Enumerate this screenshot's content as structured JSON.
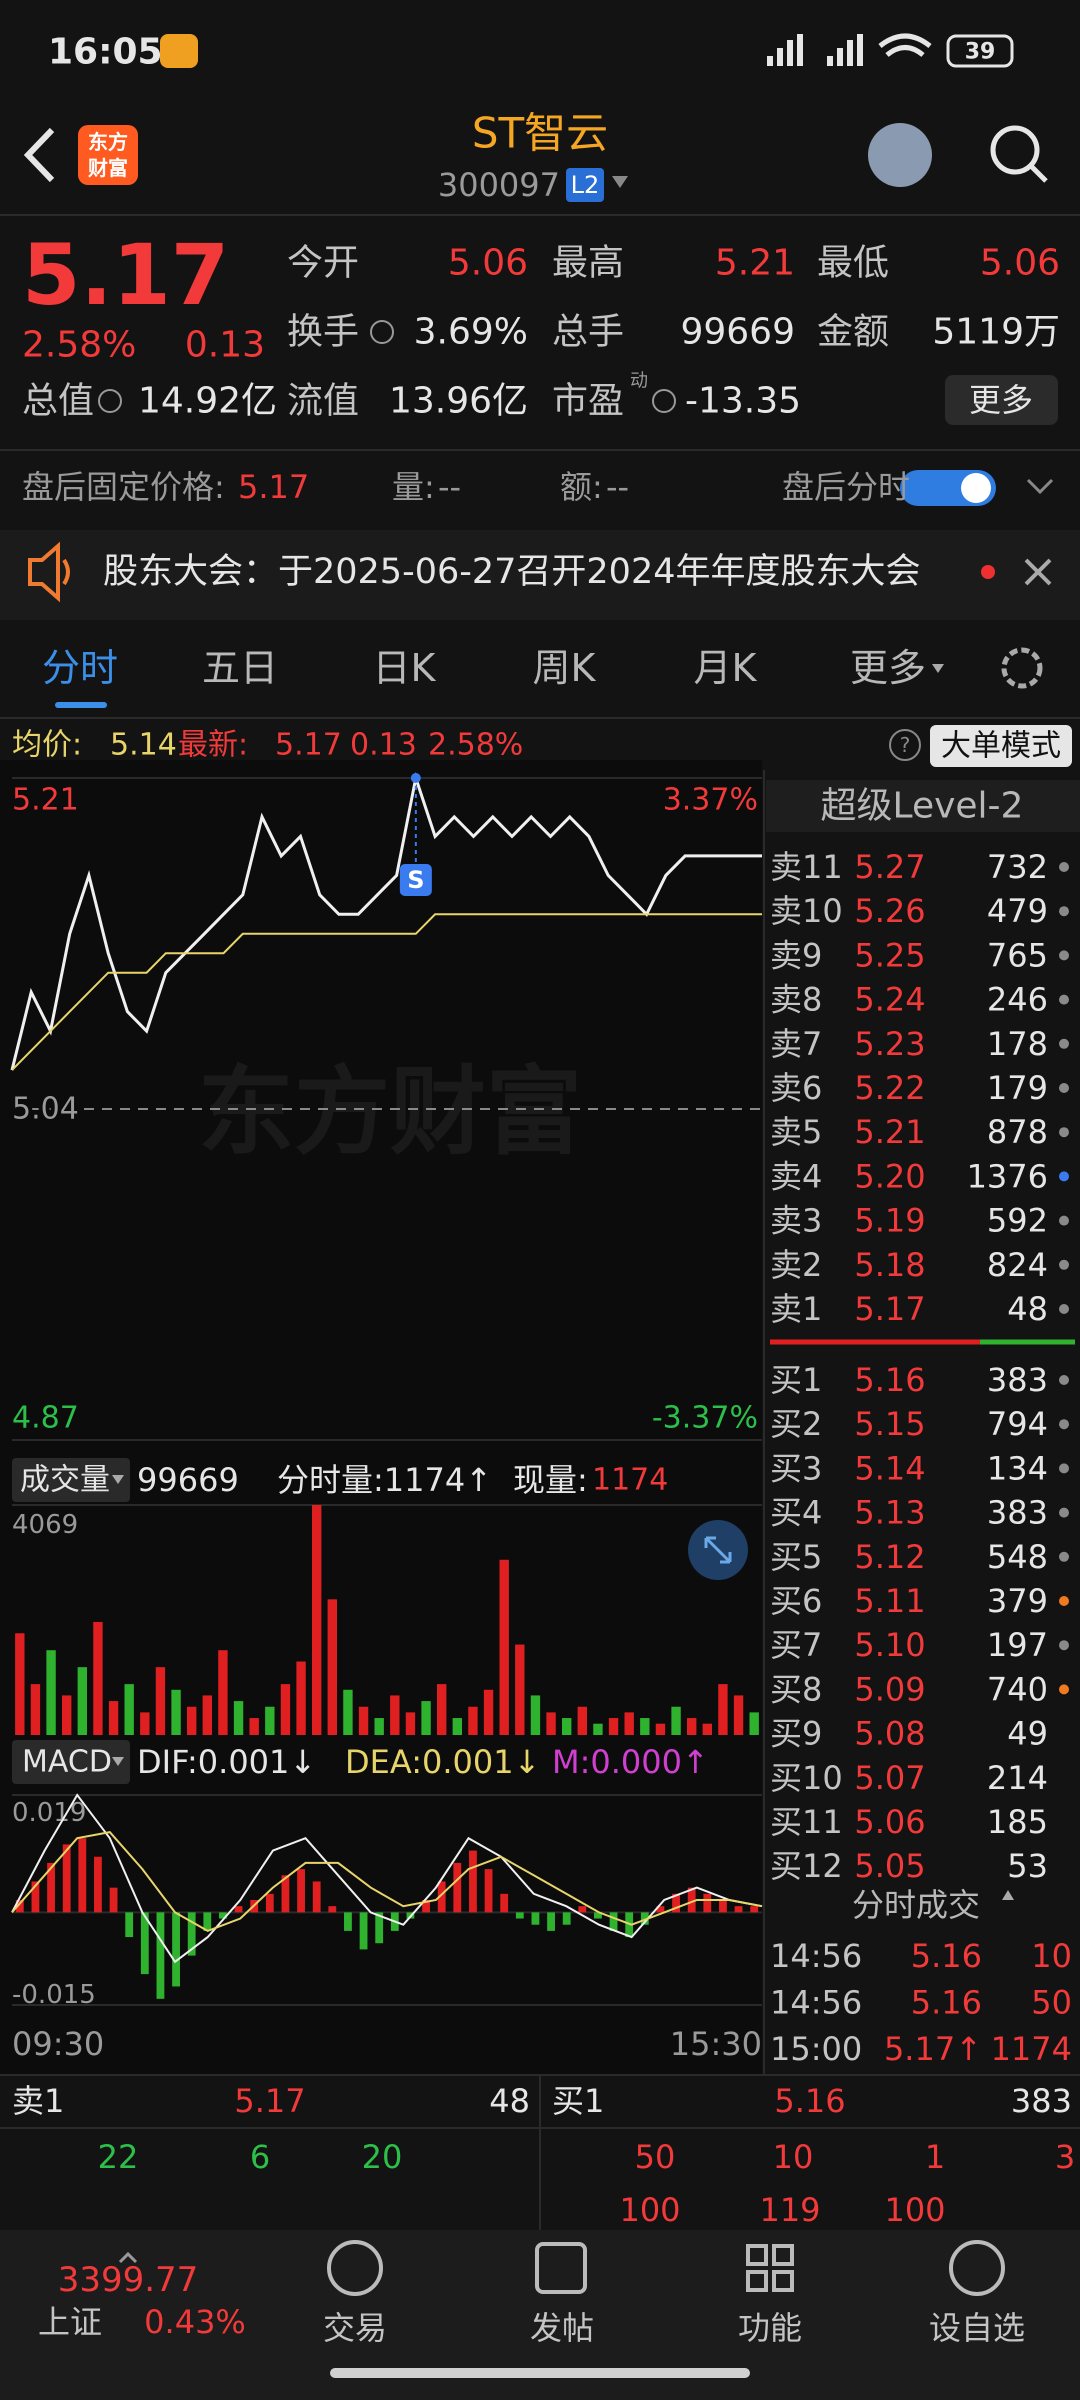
{
  "status_bar": {
    "time": "16:05",
    "battery": "39"
  },
  "header": {
    "logo": [
      "东方",
      "财富"
    ],
    "title": "ST智云",
    "code": "300097",
    "level": "L2"
  },
  "quote": {
    "price": "5.17",
    "change_pct": "2.58%",
    "change": "0.13",
    "rows": [
      [
        {
          "label": "今开",
          "value": "5.06"
        },
        {
          "label": "最高",
          "value": "5.21"
        },
        {
          "label": "最低",
          "value": "5.06"
        }
      ],
      [
        {
          "label": "换手",
          "value": "3.69%"
        },
        {
          "label": "总手",
          "value": "99669"
        },
        {
          "label": "金额",
          "value": "5119万"
        }
      ],
      [
        {
          "label": "总值",
          "value": "14.92亿"
        },
        {
          "label": "流值",
          "value": "13.96亿"
        },
        {
          "label": "市盈",
          "value": "-13.35",
          "tag": "动"
        }
      ]
    ],
    "more": "更多"
  },
  "after_hours": {
    "price_label": "盘后固定价格:",
    "price": "5.17",
    "volume_label": "量:",
    "volume": "--",
    "amount_label": "额:",
    "amount": "--",
    "toggle_label": "盘后分时"
  },
  "notice": "股东大会：于2025-06-27召开2024年年度股东大会",
  "tabs": [
    "分时",
    "五日",
    "日K",
    "周K",
    "月K",
    "更多"
  ],
  "info": {
    "avg_label": "均价:",
    "avg": "5.14",
    "last_label": "最新:",
    "last": "5.17",
    "change": "0.13",
    "change_pct": "2.58%",
    "mode": "大单模式"
  },
  "watermark": "东方财富",
  "chart_data": [
    {
      "type": "line",
      "series": [
        {
          "color": "#f0f0f0",
          "values": [
            5.06,
            5.1,
            5.08,
            5.13,
            5.16,
            5.12,
            5.09,
            5.08,
            5.11,
            5.12,
            5.13,
            5.14,
            5.15,
            5.19,
            5.17,
            5.18,
            5.15,
            5.14,
            5.14,
            5.15,
            5.16,
            5.21,
            5.18,
            5.19,
            5.18,
            5.19,
            5.18,
            5.19,
            5.18,
            5.19,
            5.18,
            5.16,
            5.15,
            5.14,
            5.16,
            5.17,
            5.17,
            5.17,
            5.17,
            5.17
          ]
        },
        {
          "color": "#e8d56a",
          "values": [
            5.06,
            5.07,
            5.08,
            5.09,
            5.1,
            5.11,
            5.11,
            5.11,
            5.12,
            5.12,
            5.12,
            5.12,
            5.13,
            5.13,
            5.13,
            5.13,
            5.13,
            5.13,
            5.13,
            5.13,
            5.13,
            5.13,
            5.14,
            5.14,
            5.14,
            5.14,
            5.14,
            5.14,
            5.14,
            5.14,
            5.14,
            5.14,
            5.14,
            5.14,
            5.14,
            5.14,
            5.14,
            5.14,
            5.14,
            5.14
          ]
        }
      ],
      "ylim": [
        4.87,
        5.21
      ],
      "yticks": [
        5.21,
        5.04,
        4.87
      ],
      "y2lim": [
        -3.37,
        3.37
      ],
      "y2ticks": [
        {
          "value": 3.37,
          "label": "3.37%"
        },
        {
          "value": -3.37,
          "label": "-3.37%"
        }
      ],
      "marker": "S"
    },
    {
      "type": "bar",
      "values": [
        1800,
        900,
        1500,
        700,
        1200,
        2000,
        600,
        900,
        400,
        1200,
        800,
        500,
        700,
        1500,
        600,
        300,
        500,
        900,
        1300,
        4069,
        2400,
        800,
        500,
        300,
        700,
        400,
        600,
        900,
        300,
        500,
        800,
        3100,
        1600,
        700,
        400,
        300,
        500,
        200,
        300,
        400,
        300,
        200,
        500,
        300,
        200,
        900,
        700,
        400
      ],
      "colors": [
        "#e02020",
        "#e02020",
        "#2fb32f",
        "#e02020",
        "#2fb32f",
        "#e02020",
        "#e02020",
        "#2fb32f",
        "#e02020",
        "#e02020",
        "#2fb32f",
        "#e02020",
        "#e02020",
        "#e02020",
        "#2fb32f",
        "#e02020",
        "#2fb32f",
        "#e02020",
        "#e02020",
        "#e02020",
        "#e02020",
        "#2fb32f",
        "#e02020",
        "#2fb32f",
        "#e02020",
        "#e02020",
        "#2fb32f",
        "#e02020",
        "#2fb32f",
        "#e02020",
        "#e02020",
        "#e02020",
        "#e02020",
        "#2fb32f",
        "#e02020",
        "#2fb32f",
        "#e02020",
        "#2fb32f",
        "#e02020",
        "#e02020",
        "#2fb32f",
        "#e02020",
        "#2fb32f",
        "#e02020",
        "#e02020",
        "#e02020",
        "#e02020",
        "#2fb32f"
      ],
      "ylim": [
        0,
        4069
      ],
      "yticks": [
        4069
      ]
    },
    {
      "type": "macd",
      "histogram": [
        0.002,
        0.005,
        0.008,
        0.011,
        0.012,
        0.009,
        0.004,
        -0.004,
        -0.01,
        -0.014,
        -0.012,
        -0.007,
        -0.003,
        -0.001,
        0.001,
        0.002,
        0.003,
        0.006,
        0.007,
        0.005,
        0.001,
        -0.003,
        -0.006,
        -0.005,
        -0.003,
        -0.001,
        0.002,
        0.005,
        0.008,
        0.01,
        0.007,
        0.003,
        -0.001,
        -0.002,
        -0.003,
        -0.002,
        0.001,
        -0.001,
        -0.003,
        -0.004,
        -0.002,
        0.001,
        0.003,
        0.004,
        0.003,
        0.002,
        0.001,
        0.001
      ],
      "series": [
        {
          "color": "#f0f0f0",
          "values": [
            0.0,
            0.01,
            0.019,
            0.012,
            0.0,
            -0.008,
            -0.004,
            0.002,
            0.01,
            0.012,
            0.006,
            0.0,
            -0.002,
            0.004,
            0.012,
            0.009,
            0.003,
            0.001,
            -0.002,
            -0.004,
            0.002,
            0.004,
            0.002,
            0.001
          ]
        },
        {
          "color": "#e8d56a",
          "values": [
            0.0,
            0.006,
            0.012,
            0.013,
            0.007,
            0.0,
            -0.003,
            -0.001,
            0.004,
            0.008,
            0.008,
            0.004,
            0.001,
            0.002,
            0.007,
            0.009,
            0.006,
            0.003,
            0.0,
            -0.002,
            0.0,
            0.002,
            0.002,
            0.001
          ]
        }
      ],
      "ylim": [
        -0.015,
        0.019
      ],
      "yticks": [
        0.019,
        -0.015
      ]
    }
  ],
  "volume_header": {
    "label": "成交量",
    "total": "99669",
    "minute": "分时量:1174↑",
    "current_label": "现量:",
    "current": "1174"
  },
  "macd_header": {
    "label": "MACD",
    "dif": "DIF:0.001↓",
    "dea": "DEA:0.001↓",
    "m": "M:0.000↑"
  },
  "time_axis": [
    "09:30",
    "15:30"
  ],
  "order_book": {
    "header": "超级Level-2",
    "asks": [
      {
        "label": "卖11",
        "price": "5.27",
        "volume": "732",
        "dot": "#8a8a8a"
      },
      {
        "label": "卖10",
        "price": "5.26",
        "volume": "479",
        "dot": "#8a8a8a"
      },
      {
        "label": "卖9",
        "price": "5.25",
        "volume": "765",
        "dot": "#8a8a8a"
      },
      {
        "label": "卖8",
        "price": "5.24",
        "volume": "246",
        "dot": "#8a8a8a"
      },
      {
        "label": "卖7",
        "price": "5.23",
        "volume": "178",
        "dot": "#8a8a8a"
      },
      {
        "label": "卖6",
        "price": "5.22",
        "volume": "179",
        "dot": "#8a8a8a"
      },
      {
        "label": "卖5",
        "price": "5.21",
        "volume": "878",
        "dot": "#8a8a8a"
      },
      {
        "label": "卖4",
        "price": "5.20",
        "volume": "1376",
        "dot": "#3a7bf0"
      },
      {
        "label": "卖3",
        "price": "5.19",
        "volume": "592",
        "dot": "#8a8a8a"
      },
      {
        "label": "卖2",
        "price": "5.18",
        "volume": "824",
        "dot": "#8a8a8a"
      },
      {
        "label": "卖1",
        "price": "5.17",
        "volume": "48",
        "dot": "#8a8a8a"
      }
    ],
    "bids": [
      {
        "label": "买1",
        "price": "5.16",
        "volume": "383",
        "dot": "#8a8a8a"
      },
      {
        "label": "买2",
        "price": "5.15",
        "volume": "794",
        "dot": "#8a8a8a"
      },
      {
        "label": "买3",
        "price": "5.14",
        "volume": "134",
        "dot": "#8a8a8a"
      },
      {
        "label": "买4",
        "price": "5.13",
        "volume": "383",
        "dot": "#8a8a8a"
      },
      {
        "label": "买5",
        "price": "5.12",
        "volume": "548",
        "dot": "#8a8a8a"
      },
      {
        "label": "买6",
        "price": "5.11",
        "volume": "379",
        "dot": "#f07a20"
      },
      {
        "label": "买7",
        "price": "5.10",
        "volume": "197",
        "dot": "#8a8a8a"
      },
      {
        "label": "买8",
        "price": "5.09",
        "volume": "740",
        "dot": "#f07a20"
      },
      {
        "label": "买9",
        "price": "5.08",
        "volume": "49"
      },
      {
        "label": "买10",
        "price": "5.07",
        "volume": "214"
      },
      {
        "label": "买11",
        "price": "5.06",
        "volume": "185"
      },
      {
        "label": "买12",
        "price": "5.05",
        "volume": "53"
      }
    ]
  },
  "trades": {
    "header": "分时成交",
    "rows": [
      [
        "14:56",
        "5.16",
        "10"
      ],
      [
        "14:56",
        "5.16",
        "50"
      ],
      [
        "15:00",
        "5.17↑",
        "1174"
      ]
    ]
  },
  "summary": {
    "ask_label": "卖1",
    "ask_price": "5.17",
    "ask_volume": "48",
    "bid_label": "买1",
    "bid_price": "5.16",
    "bid_volume": "383",
    "ask_queue": [
      "22",
      "6",
      "20"
    ],
    "bid_queue": [
      [
        "50",
        "10",
        "1",
        "3"
      ],
      [
        "100",
        "119",
        "100"
      ]
    ]
  },
  "nav": {
    "index_value": "3399.77",
    "index_name": "上证",
    "index_change": "0.43%",
    "items": [
      "交易",
      "发帖",
      "功能",
      "设自选"
    ]
  }
}
